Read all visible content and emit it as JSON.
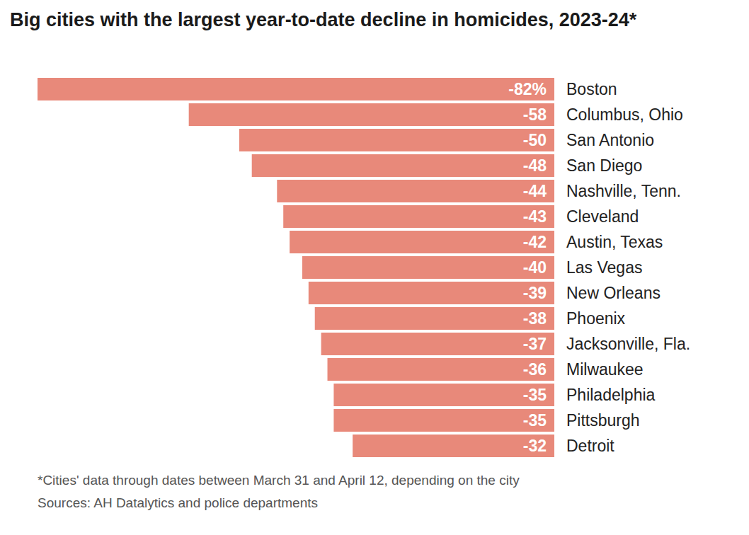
{
  "chart_data": {
    "type": "bar",
    "orientation": "horizontal",
    "title": "Big cities with the largest year-to-date decline in homicides, 2023-24*",
    "categories": [
      "Boston",
      "Columbus, Ohio",
      "San Antonio",
      "San Diego",
      "Nashville, Tenn.",
      "Cleveland",
      "Austin, Texas",
      "Las Vegas",
      "New Orleans",
      "Phoenix",
      "Jacksonville, Fla.",
      "Milwaukee",
      "Philadelphia",
      "Pittsburgh",
      "Detroit"
    ],
    "values": [
      -82,
      -58,
      -50,
      -48,
      -44,
      -43,
      -42,
      -40,
      -39,
      -38,
      -37,
      -36,
      -35,
      -35,
      -32
    ],
    "value_labels": [
      "-82%",
      "-58",
      "-50",
      "-48",
      "-44",
      "-43",
      "-42",
      "-40",
      "-39",
      "-38",
      "-37",
      "-36",
      "-35",
      "-35",
      "-32"
    ],
    "data_labels": true,
    "color": "#e8897a",
    "xlim": [
      -82,
      0
    ],
    "tick_labels": "y",
    "grid": false,
    "footnote": "*Cities' data through dates between March 31 and April 12, depending on the city",
    "source": "Sources: AH Datalytics and police departments"
  }
}
